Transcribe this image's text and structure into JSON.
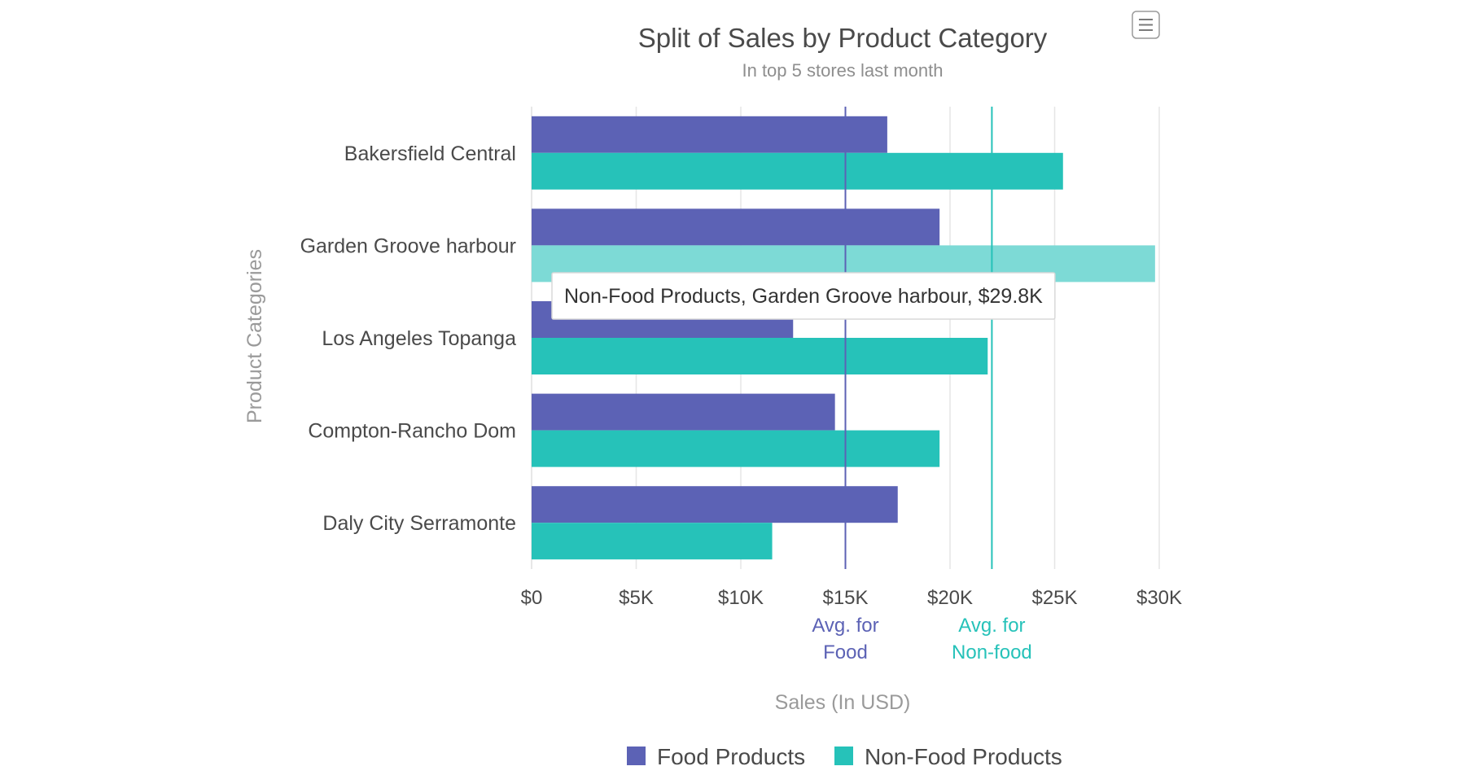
{
  "chart_data": {
    "type": "bar",
    "orientation": "horizontal",
    "title": "Split of Sales by Product Category",
    "subtitle": "In top 5 stores last month",
    "xlabel": "Sales (In USD)",
    "ylabel": "Product Categories",
    "categories": [
      "Bakersfield Central",
      "Garden Groove harbour",
      "Los Angeles Topanga",
      "Compton-Rancho Dom",
      "Daly City Serramonte"
    ],
    "series": [
      {
        "name": "Food Products",
        "color": "#5c62b5",
        "values": [
          17000,
          19500,
          12500,
          14500,
          17500
        ]
      },
      {
        "name": "Non-Food Products",
        "color": "#26c2b9",
        "values": [
          25400,
          29800,
          21800,
          19500,
          11500
        ]
      }
    ],
    "xlim": [
      0,
      30000
    ],
    "ticks": [
      0,
      5000,
      10000,
      15000,
      20000,
      25000,
      30000
    ],
    "tick_labels": [
      "$0",
      "$5K",
      "$10K",
      "$15K",
      "$20K",
      "$25K",
      "$30K"
    ],
    "grid": true,
    "legend_position": "bottom",
    "reference_lines": [
      {
        "label_line1": "Avg. for",
        "label_line2": "Food",
        "value": 15000,
        "color": "#5c62b5"
      },
      {
        "label_line1": "Avg. for",
        "label_line2": "Non-food",
        "value": 22000,
        "color": "#26c2b9"
      }
    ],
    "tooltip": {
      "text": "Non-Food Products, Garden Groove harbour, $29.8K",
      "series_index": 1,
      "category_index": 1
    },
    "hover_color": "#7ddad6"
  },
  "menu": {
    "icon": "hamburger-menu-icon"
  }
}
